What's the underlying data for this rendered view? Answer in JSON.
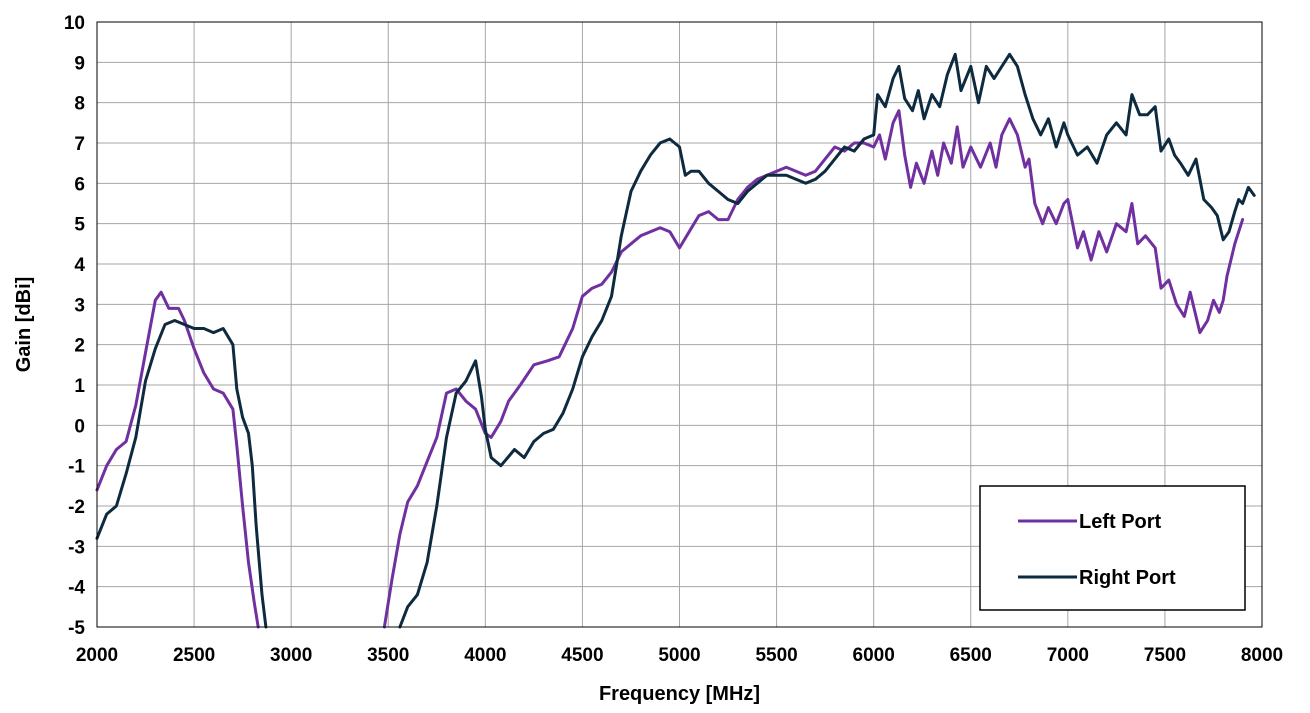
{
  "chart_data": {
    "type": "line",
    "title": "",
    "xlabel": "Frequency [MHz]",
    "ylabel": "Gain [dBi]",
    "xlim": [
      2000,
      8000
    ],
    "ylim": [
      -5,
      10
    ],
    "x_ticks": [
      2000,
      2500,
      3000,
      3500,
      4000,
      4500,
      5000,
      5500,
      6000,
      6500,
      7000,
      7500,
      8000
    ],
    "y_ticks": [
      -5,
      -4,
      -3,
      -2,
      -1,
      0,
      1,
      2,
      3,
      4,
      5,
      6,
      7,
      8,
      9,
      10
    ],
    "grid": true,
    "legend_position": "bottom-right",
    "series": [
      {
        "name": "Left Port",
        "color": "#7030a0",
        "segments": [
          [
            [
              2000,
              -1.6
            ],
            [
              2050,
              -1.0
            ],
            [
              2100,
              -0.6
            ],
            [
              2150,
              -0.4
            ],
            [
              2200,
              0.5
            ],
            [
              2250,
              1.8
            ],
            [
              2300,
              3.1
            ],
            [
              2330,
              3.3
            ],
            [
              2370,
              2.9
            ],
            [
              2420,
              2.9
            ],
            [
              2450,
              2.6
            ],
            [
              2500,
              1.9
            ],
            [
              2550,
              1.3
            ],
            [
              2600,
              0.9
            ],
            [
              2650,
              0.8
            ],
            [
              2700,
              0.4
            ],
            [
              2720,
              -0.5
            ],
            [
              2750,
              -2.0
            ],
            [
              2780,
              -3.4
            ],
            [
              2810,
              -4.4
            ],
            [
              2830,
              -5.0
            ]
          ],
          [
            [
              3480,
              -5.0
            ],
            [
              3520,
              -3.8
            ],
            [
              3560,
              -2.7
            ],
            [
              3600,
              -1.9
            ],
            [
              3650,
              -1.5
            ],
            [
              3700,
              -0.9
            ],
            [
              3750,
              -0.3
            ],
            [
              3800,
              0.8
            ],
            [
              3850,
              0.9
            ],
            [
              3900,
              0.6
            ],
            [
              3950,
              0.4
            ],
            [
              4000,
              -0.2
            ],
            [
              4030,
              -0.3
            ],
            [
              4080,
              0.1
            ],
            [
              4120,
              0.6
            ],
            [
              4180,
              1.0
            ],
            [
              4250,
              1.5
            ],
            [
              4320,
              1.6
            ],
            [
              4380,
              1.7
            ],
            [
              4450,
              2.4
            ],
            [
              4500,
              3.2
            ],
            [
              4550,
              3.4
            ],
            [
              4600,
              3.5
            ],
            [
              4650,
              3.8
            ],
            [
              4700,
              4.3
            ],
            [
              4750,
              4.5
            ],
            [
              4800,
              4.7
            ],
            [
              4850,
              4.8
            ],
            [
              4900,
              4.9
            ],
            [
              4950,
              4.8
            ],
            [
              5000,
              4.4
            ],
            [
              5050,
              4.8
            ],
            [
              5100,
              5.2
            ],
            [
              5150,
              5.3
            ],
            [
              5200,
              5.1
            ],
            [
              5250,
              5.1
            ],
            [
              5300,
              5.6
            ],
            [
              5350,
              5.9
            ],
            [
              5400,
              6.1
            ],
            [
              5450,
              6.2
            ],
            [
              5500,
              6.3
            ],
            [
              5550,
              6.4
            ],
            [
              5600,
              6.3
            ],
            [
              5650,
              6.2
            ],
            [
              5700,
              6.3
            ],
            [
              5750,
              6.6
            ],
            [
              5800,
              6.9
            ],
            [
              5850,
              6.8
            ],
            [
              5900,
              7.0
            ],
            [
              5950,
              7.0
            ],
            [
              6000,
              6.9
            ],
            [
              6030,
              7.2
            ],
            [
              6060,
              6.6
            ],
            [
              6100,
              7.5
            ],
            [
              6130,
              7.8
            ],
            [
              6160,
              6.7
            ],
            [
              6190,
              5.9
            ],
            [
              6220,
              6.5
            ],
            [
              6260,
              6.0
            ],
            [
              6300,
              6.8
            ],
            [
              6330,
              6.2
            ],
            [
              6360,
              7.0
            ],
            [
              6400,
              6.5
            ],
            [
              6430,
              7.4
            ],
            [
              6460,
              6.4
            ],
            [
              6500,
              6.9
            ],
            [
              6550,
              6.4
            ],
            [
              6600,
              7.0
            ],
            [
              6630,
              6.4
            ],
            [
              6660,
              7.2
            ],
            [
              6700,
              7.6
            ],
            [
              6740,
              7.2
            ],
            [
              6780,
              6.4
            ],
            [
              6800,
              6.6
            ],
            [
              6830,
              5.5
            ],
            [
              6870,
              5.0
            ],
            [
              6900,
              5.4
            ],
            [
              6940,
              5.0
            ],
            [
              6980,
              5.5
            ],
            [
              7000,
              5.6
            ],
            [
              7050,
              4.4
            ],
            [
              7080,
              4.8
            ],
            [
              7120,
              4.1
            ],
            [
              7160,
              4.8
            ],
            [
              7200,
              4.3
            ],
            [
              7250,
              5.0
            ],
            [
              7300,
              4.8
            ],
            [
              7330,
              5.5
            ],
            [
              7360,
              4.5
            ],
            [
              7400,
              4.7
            ],
            [
              7450,
              4.4
            ],
            [
              7480,
              3.4
            ],
            [
              7520,
              3.6
            ],
            [
              7560,
              3.0
            ],
            [
              7600,
              2.7
            ],
            [
              7630,
              3.3
            ],
            [
              7680,
              2.3
            ],
            [
              7720,
              2.6
            ],
            [
              7750,
              3.1
            ],
            [
              7780,
              2.8
            ],
            [
              7800,
              3.1
            ],
            [
              7820,
              3.7
            ],
            [
              7840,
              4.1
            ],
            [
              7860,
              4.5
            ],
            [
              7880,
              4.8
            ],
            [
              7900,
              5.1
            ]
          ]
        ]
      },
      {
        "name": "Right Port",
        "color": "#0d2a3f",
        "segments": [
          [
            [
              2000,
              -2.8
            ],
            [
              2050,
              -2.2
            ],
            [
              2100,
              -2.0
            ],
            [
              2150,
              -1.2
            ],
            [
              2200,
              -0.3
            ],
            [
              2250,
              1.1
            ],
            [
              2300,
              1.9
            ],
            [
              2350,
              2.5
            ],
            [
              2400,
              2.6
            ],
            [
              2450,
              2.5
            ],
            [
              2500,
              2.4
            ],
            [
              2550,
              2.4
            ],
            [
              2600,
              2.3
            ],
            [
              2650,
              2.4
            ],
            [
              2700,
              2.0
            ],
            [
              2720,
              0.9
            ],
            [
              2750,
              0.2
            ],
            [
              2780,
              -0.2
            ],
            [
              2800,
              -1.0
            ],
            [
              2820,
              -2.5
            ],
            [
              2850,
              -4.2
            ],
            [
              2870,
              -5.0
            ]
          ],
          [
            [
              3560,
              -5.0
            ],
            [
              3600,
              -4.5
            ],
            [
              3650,
              -4.2
            ],
            [
              3700,
              -3.4
            ],
            [
              3750,
              -2.0
            ],
            [
              3800,
              -0.3
            ],
            [
              3850,
              0.8
            ],
            [
              3900,
              1.1
            ],
            [
              3950,
              1.6
            ],
            [
              3980,
              0.7
            ],
            [
              4000,
              -0.1
            ],
            [
              4030,
              -0.8
            ],
            [
              4080,
              -1.0
            ],
            [
              4150,
              -0.6
            ],
            [
              4200,
              -0.8
            ],
            [
              4250,
              -0.4
            ],
            [
              4300,
              -0.2
            ],
            [
              4350,
              -0.1
            ],
            [
              4400,
              0.3
            ],
            [
              4450,
              0.9
            ],
            [
              4500,
              1.7
            ],
            [
              4550,
              2.2
            ],
            [
              4600,
              2.6
            ],
            [
              4650,
              3.2
            ],
            [
              4700,
              4.7
            ],
            [
              4750,
              5.8
            ],
            [
              4800,
              6.3
            ],
            [
              4850,
              6.7
            ],
            [
              4900,
              7.0
            ],
            [
              4950,
              7.1
            ],
            [
              5000,
              6.9
            ],
            [
              5030,
              6.2
            ],
            [
              5060,
              6.3
            ],
            [
              5100,
              6.3
            ],
            [
              5150,
              6.0
            ],
            [
              5200,
              5.8
            ],
            [
              5250,
              5.6
            ],
            [
              5300,
              5.5
            ],
            [
              5350,
              5.8
            ],
            [
              5400,
              6.0
            ],
            [
              5450,
              6.2
            ],
            [
              5500,
              6.2
            ],
            [
              5550,
              6.2
            ],
            [
              5600,
              6.1
            ],
            [
              5650,
              6.0
            ],
            [
              5700,
              6.1
            ],
            [
              5750,
              6.3
            ],
            [
              5800,
              6.6
            ],
            [
              5850,
              6.9
            ],
            [
              5900,
              6.8
            ],
            [
              5950,
              7.1
            ],
            [
              6000,
              7.2
            ],
            [
              6020,
              8.2
            ],
            [
              6060,
              7.9
            ],
            [
              6100,
              8.6
            ],
            [
              6130,
              8.9
            ],
            [
              6160,
              8.1
            ],
            [
              6200,
              7.8
            ],
            [
              6230,
              8.3
            ],
            [
              6260,
              7.6
            ],
            [
              6300,
              8.2
            ],
            [
              6340,
              7.9
            ],
            [
              6380,
              8.7
            ],
            [
              6420,
              9.2
            ],
            [
              6450,
              8.3
            ],
            [
              6500,
              8.9
            ],
            [
              6540,
              8.0
            ],
            [
              6580,
              8.9
            ],
            [
              6620,
              8.6
            ],
            [
              6660,
              8.9
            ],
            [
              6700,
              9.2
            ],
            [
              6740,
              8.9
            ],
            [
              6780,
              8.2
            ],
            [
              6820,
              7.6
            ],
            [
              6860,
              7.2
            ],
            [
              6900,
              7.6
            ],
            [
              6940,
              6.9
            ],
            [
              6980,
              7.5
            ],
            [
              7000,
              7.2
            ],
            [
              7050,
              6.7
            ],
            [
              7100,
              6.9
            ],
            [
              7150,
              6.5
            ],
            [
              7200,
              7.2
            ],
            [
              7250,
              7.5
            ],
            [
              7300,
              7.2
            ],
            [
              7330,
              8.2
            ],
            [
              7370,
              7.7
            ],
            [
              7410,
              7.7
            ],
            [
              7450,
              7.9
            ],
            [
              7480,
              6.8
            ],
            [
              7520,
              7.1
            ],
            [
              7550,
              6.7
            ],
            [
              7580,
              6.5
            ],
            [
              7620,
              6.2
            ],
            [
              7660,
              6.6
            ],
            [
              7700,
              5.6
            ],
            [
              7740,
              5.4
            ],
            [
              7770,
              5.2
            ],
            [
              7800,
              4.6
            ],
            [
              7830,
              4.8
            ],
            [
              7860,
              5.3
            ],
            [
              7880,
              5.6
            ],
            [
              7900,
              5.5
            ],
            [
              7930,
              5.9
            ],
            [
              7960,
              5.7
            ]
          ]
        ]
      }
    ]
  }
}
